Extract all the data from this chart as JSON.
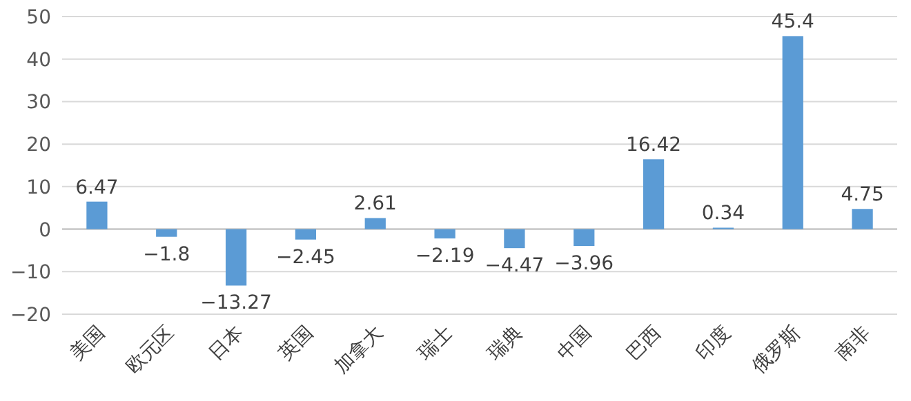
{
  "chart_data": {
    "type": "bar",
    "categories": [
      "美国",
      "欧元区",
      "日本",
      "英国",
      "加拿大",
      "瑞士",
      "瑞典",
      "中国",
      "巴西",
      "印度",
      "俄罗斯",
      "南非"
    ],
    "values": [
      6.47,
      -1.8,
      -13.27,
      -2.45,
      2.61,
      -2.19,
      -4.47,
      -3.96,
      16.42,
      0.34,
      45.4,
      4.75
    ],
    "color": "#5b9bd5",
    "ylim": [
      -20,
      50
    ],
    "yticks": [
      -20,
      -10,
      0,
      10,
      20,
      30,
      40,
      50
    ],
    "grid": "y",
    "data_labels": true
  }
}
